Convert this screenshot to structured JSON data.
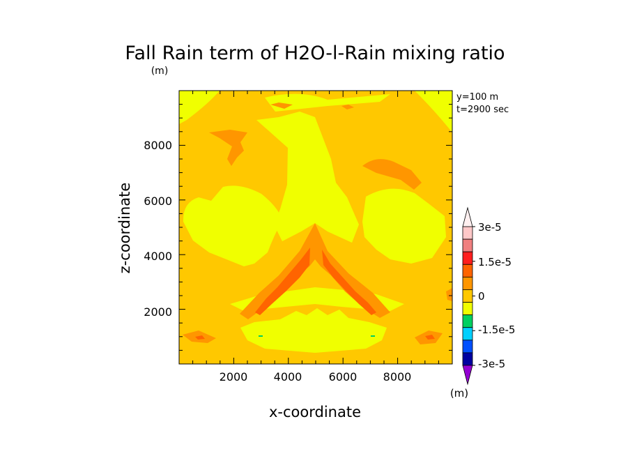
{
  "chart_data": {
    "type": "heatmap",
    "title": "Fall Rain term of H2O-l-Rain mixing ratio",
    "title_unit": "(m)",
    "xlabel": "x-coordinate",
    "ylabel": "z-coordinate",
    "xlim": [
      0,
      10000
    ],
    "ylim": [
      0,
      10000
    ],
    "xticks": [
      2000,
      4000,
      6000,
      8000
    ],
    "yticks": [
      2000,
      4000,
      6000,
      8000
    ],
    "xtick_labels": [
      "2000",
      "4000",
      "6000",
      "8000"
    ],
    "ytick_labels": [
      "2000",
      "4000",
      "6000",
      "8000"
    ],
    "annotations": [
      "y=100 m",
      "t=2900 sec"
    ],
    "colorbar": {
      "unit": "(m)",
      "labels": [
        "3e-5",
        "1.5e-5",
        "0",
        "-1.5e-5",
        "-3e-5"
      ],
      "levels": [
        -3e-05,
        -2.5e-05,
        -2e-05,
        -1.5e-05,
        -1e-05,
        -5e-06,
        0,
        5e-06,
        1e-05,
        1.5e-05,
        2e-05,
        2.5e-05,
        3e-05
      ],
      "colors": [
        "#9400d3",
        "#0000a0",
        "#0050ff",
        "#00d0ff",
        "#00d060",
        "#f0ff00",
        "#ffc800",
        "#ff9600",
        "#ff6400",
        "#ff1e1e",
        "#f08080",
        "#ffc8c8",
        "#fff0f0"
      ]
    },
    "regions": [
      {
        "level_range": [
          0,
          5e-06
        ],
        "description": "background"
      },
      {
        "level_range": [
          -5e-06,
          0
        ],
        "description": "central column and lateral bands"
      },
      {
        "level_range": [
          5e-06,
          1e-05
        ],
        "description": "inverted-V and small upper cells"
      },
      {
        "level_range": [
          1e-05,
          1.5e-05
        ],
        "description": "inner arms of inverted-V"
      }
    ]
  }
}
